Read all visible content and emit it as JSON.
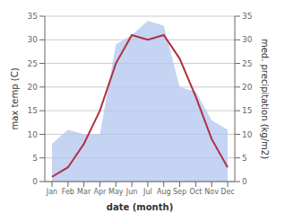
{
  "chart_data": {
    "type": "line",
    "categories": [
      "Jan",
      "Feb",
      "Mar",
      "Apr",
      "May",
      "Jun",
      "Jul",
      "Aug",
      "Sep",
      "Oct",
      "Nov",
      "Dec"
    ],
    "series": [
      {
        "type": "line",
        "color": "#b03040",
        "values": [
          1,
          3,
          8,
          15,
          25,
          31,
          30,
          31,
          26,
          18,
          9,
          3
        ]
      },
      {
        "type": "area",
        "color": "#b3c6f0",
        "axis": "y2",
        "values": [
          8,
          11,
          10,
          10,
          29,
          31,
          34,
          33,
          20,
          19,
          13,
          11
        ]
      }
    ],
    "xlabel": "date (month)",
    "ylabel": "max temp (C)",
    "y2label": "med. precipitation (kg/m2)",
    "ylim": [
      0,
      35
    ],
    "yticks": [
      0,
      5,
      10,
      15,
      20,
      25,
      30,
      35
    ],
    "y2lim": [
      0,
      35
    ],
    "y2ticks": [
      0,
      5,
      10,
      15,
      20,
      25,
      30,
      35
    ],
    "grid": "y"
  }
}
